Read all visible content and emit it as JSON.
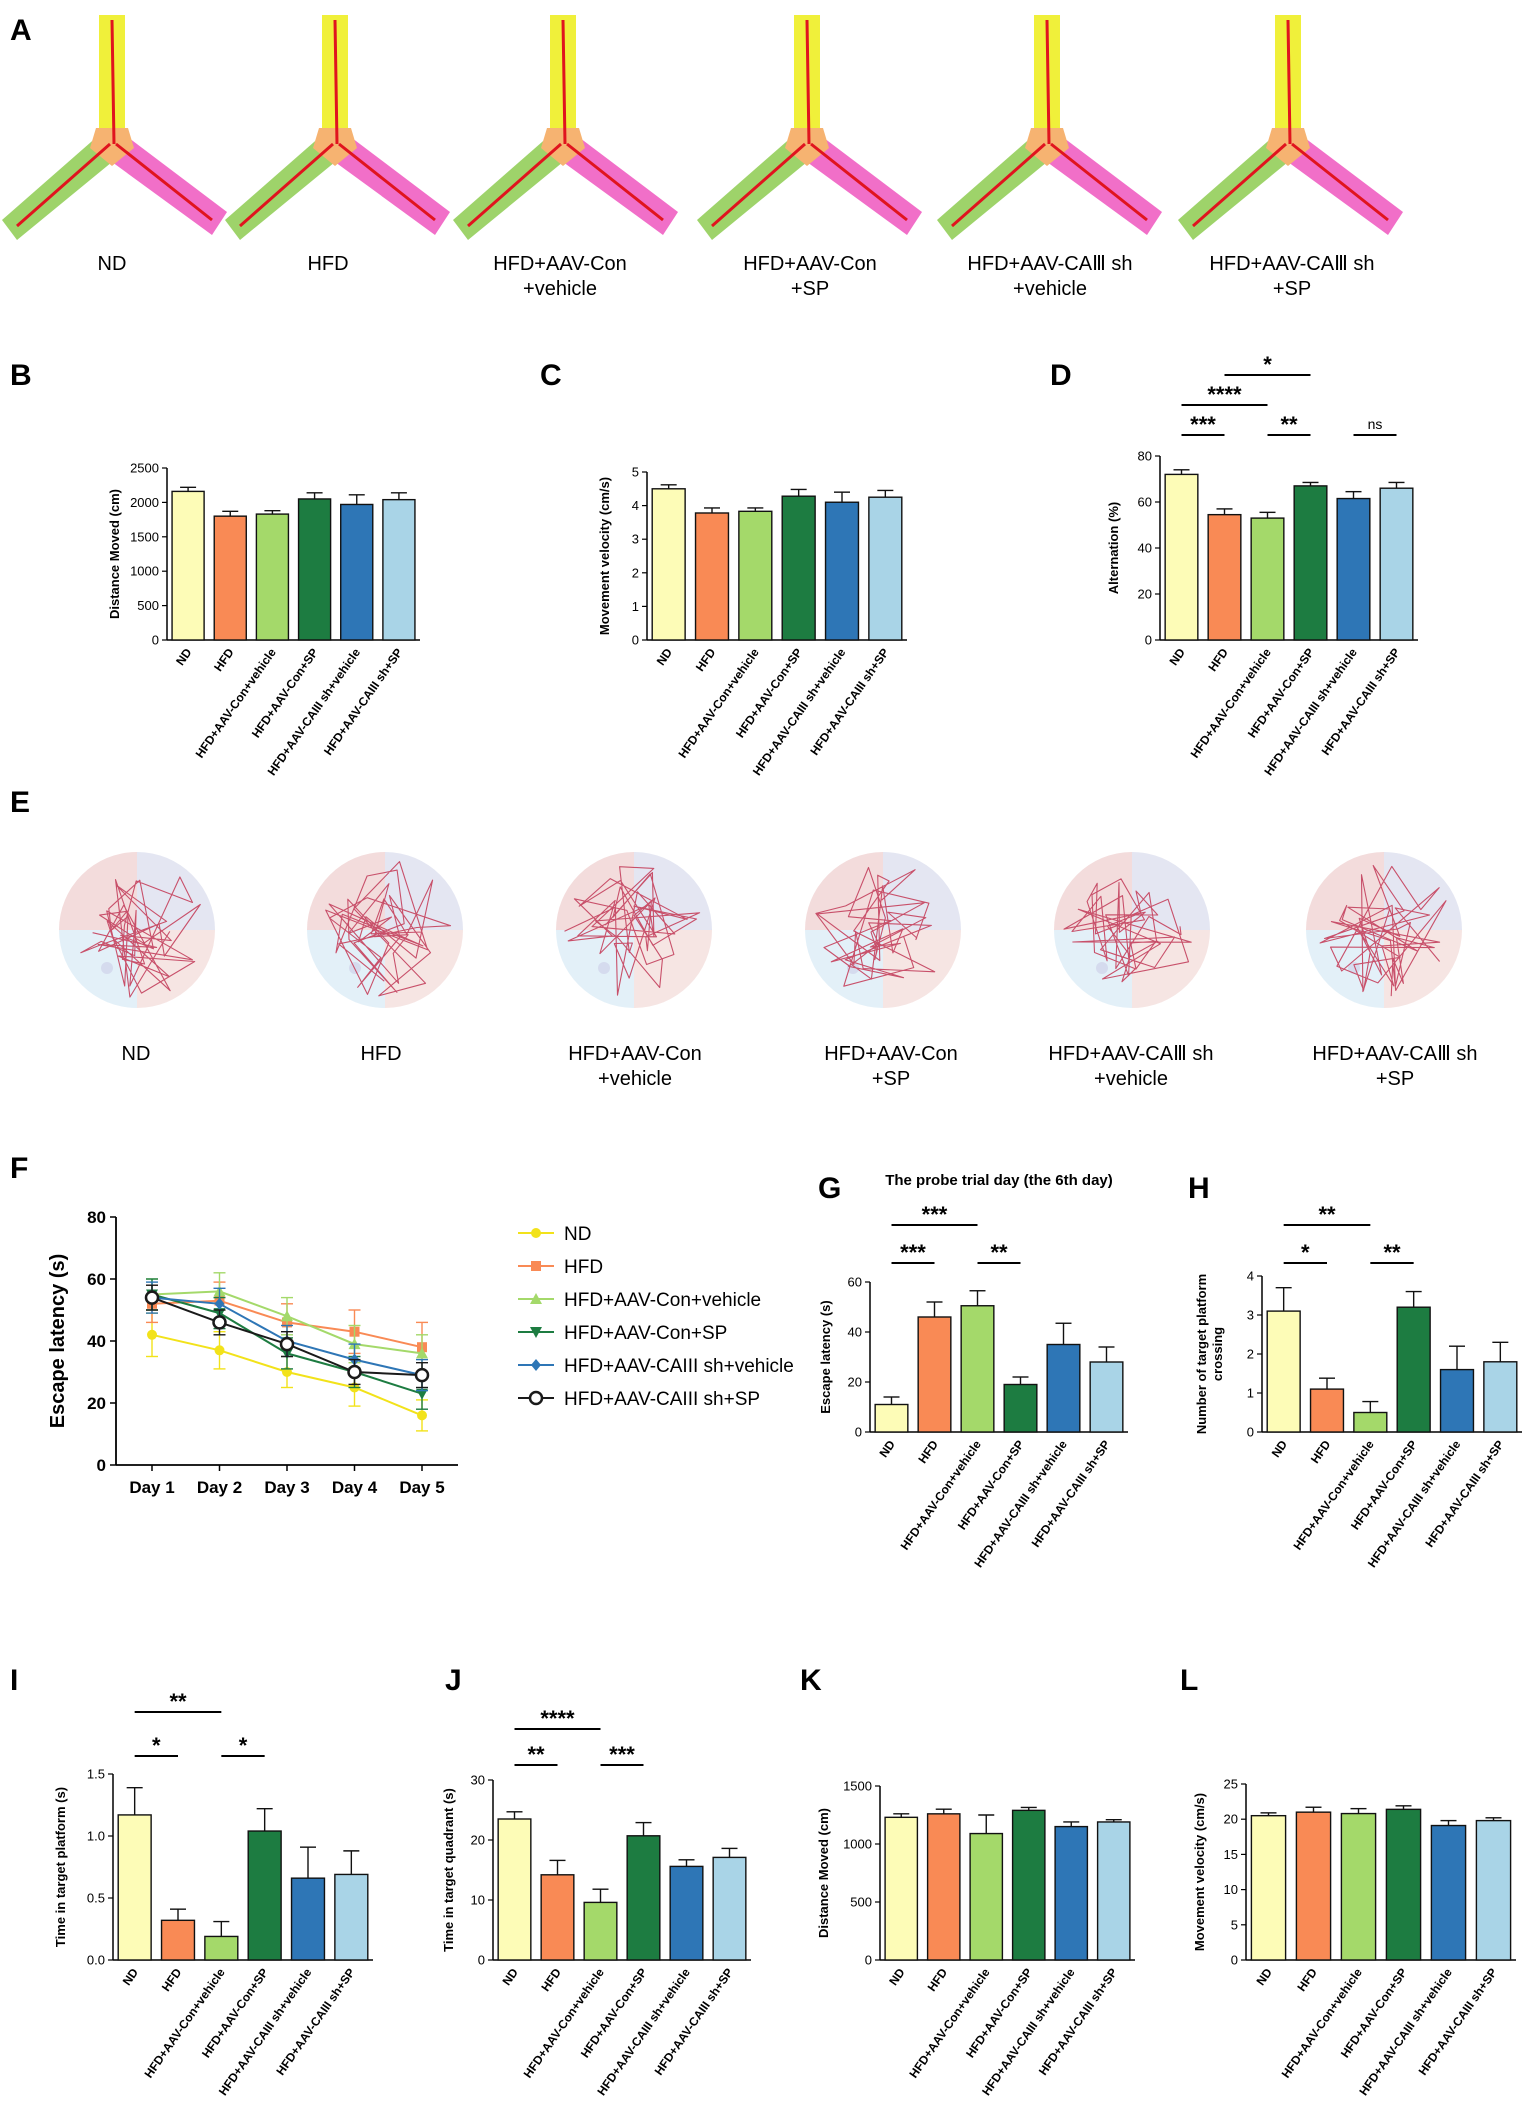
{
  "figure": {
    "panel_letters": [
      "A",
      "B",
      "C",
      "D",
      "E",
      "F",
      "G",
      "H",
      "I",
      "J",
      "K",
      "L"
    ],
    "group_captions": [
      [
        "ND"
      ],
      [
        "HFD"
      ],
      [
        "HFD+AAV-Con",
        "+vehicle"
      ],
      [
        "HFD+AAV-Con",
        "+SP"
      ],
      [
        "HFD+AAV-CAⅢ sh",
        "+vehicle"
      ],
      [
        "HFD+AAV-CAⅢ sh",
        "+SP"
      ]
    ],
    "bar_colors": [
      "#fdfcb7",
      "#f98a55",
      "#a4d96a",
      "#1d7c41",
      "#2e76b6",
      "#a9d4e7"
    ],
    "ymaze_colors": {
      "top": "#f0f03a",
      "left": "#9ed36a",
      "right": "#f16fc8",
      "center": "#f6b371",
      "track": "#e0141e"
    },
    "quadrant_colors": [
      "#f3dcdc",
      "#e4e6f2",
      "#e3f0f8",
      "#f6e5e3"
    ]
  },
  "chart_data": [
    {
      "id": "B",
      "type": "bar",
      "title": "",
      "ylabel": "Distance Moved (cm)",
      "xlabel": "",
      "ylim": [
        0,
        2500
      ],
      "yticks": [
        0,
        500,
        1000,
        1500,
        2000,
        2500
      ],
      "categories": [
        "ND",
        "HFD",
        "HFD+AAV-Con+vehicle",
        "HFD+AAV-Con+SP",
        "HFD+AAV-CAIII sh+vehicle",
        "HFD+AAV-CAIII sh+SP"
      ],
      "values": [
        2160,
        1800,
        1830,
        2050,
        1970,
        2040
      ],
      "errors": [
        60,
        70,
        50,
        90,
        140,
        100
      ],
      "significance": []
    },
    {
      "id": "C",
      "type": "bar",
      "title": "",
      "ylabel": "Movement velocity (cm/s)",
      "xlabel": "",
      "ylim": [
        0,
        5
      ],
      "yticks": [
        0,
        1,
        2,
        3,
        4,
        5
      ],
      "categories": [
        "ND",
        "HFD",
        "HFD+AAV-Con+vehicle",
        "HFD+AAV-Con+SP",
        "HFD+AAV-CAIII sh+vehicle",
        "HFD+AAV-CAIII sh+SP"
      ],
      "values": [
        4.5,
        3.78,
        3.83,
        4.28,
        4.1,
        4.25
      ],
      "errors": [
        0.12,
        0.15,
        0.1,
        0.2,
        0.3,
        0.2
      ],
      "significance": []
    },
    {
      "id": "D",
      "type": "bar",
      "title": "",
      "ylabel": "Alternation (%)",
      "xlabel": "",
      "ylim": [
        0,
        80
      ],
      "yticks": [
        0,
        20,
        40,
        60,
        80
      ],
      "categories": [
        "ND",
        "HFD",
        "HFD+AAV-Con+vehicle",
        "HFD+AAV-Con+SP",
        "HFD+AAV-CAIII sh+vehicle",
        "HFD+AAV-CAIII sh+SP"
      ],
      "values": [
        72,
        54.5,
        53,
        67,
        61.5,
        66
      ],
      "errors": [
        2,
        2.5,
        2.5,
        1.5,
        3,
        2.5
      ],
      "significance": [
        {
          "from": 0,
          "to": 1,
          "label": "***",
          "level": 0
        },
        {
          "from": 2,
          "to": 3,
          "label": "**",
          "level": 0
        },
        {
          "from": 4,
          "to": 5,
          "label": "ns",
          "level": 0
        },
        {
          "from": 0,
          "to": 2,
          "label": "****",
          "level": 1
        },
        {
          "from": 1,
          "to": 3,
          "label": "*",
          "level": 2
        }
      ]
    },
    {
      "id": "F",
      "type": "line",
      "title": "",
      "ylabel": "Escape latency (s)",
      "xlabel": "",
      "ylim": [
        0,
        80
      ],
      "yticks": [
        0,
        20,
        40,
        60,
        80
      ],
      "x": [
        "Day 1",
        "Day 2",
        "Day 3",
        "Day 4",
        "Day 5"
      ],
      "series": [
        {
          "name": "ND",
          "values": [
            42,
            37,
            30,
            25,
            16
          ],
          "errors": [
            7,
            6,
            5,
            6,
            5
          ],
          "color": "#f2e21a",
          "marker": "circle"
        },
        {
          "name": "HFD",
          "values": [
            52,
            53,
            46,
            43,
            38
          ],
          "errors": [
            6,
            6,
            6,
            7,
            8
          ],
          "color": "#f98a55",
          "marker": "square"
        },
        {
          "name": "HFD+AAV-Con+vehicle",
          "values": [
            55,
            56,
            48,
            39,
            36
          ],
          "errors": [
            5,
            6,
            6,
            6,
            6
          ],
          "color": "#a4d96a",
          "marker": "triangle-up"
        },
        {
          "name": "HFD+AAV-Con+SP",
          "values": [
            55,
            49,
            36,
            30,
            23
          ],
          "errors": [
            5,
            5,
            5,
            5,
            5
          ],
          "color": "#1d7c41",
          "marker": "triangle-down"
        },
        {
          "name": "HFD+AAV-CAIII sh+vehicle",
          "values": [
            54,
            52,
            40,
            34,
            29
          ],
          "errors": [
            5,
            5,
            5,
            5,
            5
          ],
          "color": "#2e76b6",
          "marker": "diamond"
        },
        {
          "name": "HFD+AAV-CAIII sh+SP",
          "values": [
            54,
            46,
            39,
            30,
            29
          ],
          "errors": [
            4,
            4,
            4,
            4,
            4
          ],
          "color": "#1a1a1a",
          "marker": "open-circle"
        }
      ]
    },
    {
      "id": "G",
      "type": "bar",
      "title": "The probe trial day (the 6th day)",
      "ylabel": "Escape latency (s)",
      "xlabel": "",
      "ylim": [
        0,
        60
      ],
      "yticks": [
        0,
        20,
        40,
        60
      ],
      "categories": [
        "ND",
        "HFD",
        "HFD+AAV-Con+vehicle",
        "HFD+AAV-Con+SP",
        "HFD+AAV-CAIII sh+vehicle",
        "HFD+AAV-CAIII sh+SP"
      ],
      "values": [
        11,
        46,
        50.5,
        19,
        35,
        28
      ],
      "errors": [
        3,
        6,
        6,
        3,
        8.5,
        6
      ],
      "significance": [
        {
          "from": 0,
          "to": 1,
          "label": "***",
          "level": 0
        },
        {
          "from": 2,
          "to": 3,
          "label": "**",
          "level": 0
        },
        {
          "from": 0,
          "to": 2,
          "label": "***",
          "level": 1
        }
      ]
    },
    {
      "id": "H",
      "type": "bar",
      "title": "",
      "ylabel": "Number of target platform crossing",
      "xlabel": "",
      "ylim": [
        0,
        4
      ],
      "yticks": [
        0,
        1,
        2,
        3,
        4
      ],
      "categories": [
        "ND",
        "HFD",
        "HFD+AAV-Con+vehicle",
        "HFD+AAV-Con+SP",
        "HFD+AAV-CAIII sh+vehicle",
        "HFD+AAV-CAIII sh+SP"
      ],
      "values": [
        3.1,
        1.1,
        0.5,
        3.2,
        1.6,
        1.8
      ],
      "errors": [
        0.6,
        0.28,
        0.28,
        0.4,
        0.6,
        0.5
      ],
      "significance": [
        {
          "from": 0,
          "to": 1,
          "label": "*",
          "level": 0
        },
        {
          "from": 2,
          "to": 3,
          "label": "**",
          "level": 0
        },
        {
          "from": 0,
          "to": 2,
          "label": "**",
          "level": 1
        }
      ]
    },
    {
      "id": "I",
      "type": "bar",
      "title": "",
      "ylabel": "Time in target platform (s)",
      "xlabel": "",
      "ylim": [
        0,
        1.5
      ],
      "yticks": [
        0.0,
        0.5,
        1.0,
        1.5
      ],
      "categories": [
        "ND",
        "HFD",
        "HFD+AAV-Con+vehicle",
        "HFD+AAV-Con+SP",
        "HFD+AAV-CAIII sh+vehicle",
        "HFD+AAV-CAIII sh+SP"
      ],
      "values": [
        1.17,
        0.32,
        0.19,
        1.04,
        0.66,
        0.69
      ],
      "errors": [
        0.22,
        0.09,
        0.12,
        0.18,
        0.25,
        0.19
      ],
      "significance": [
        {
          "from": 0,
          "to": 1,
          "label": "*",
          "level": 0
        },
        {
          "from": 2,
          "to": 3,
          "label": "*",
          "level": 0
        },
        {
          "from": 0,
          "to": 2,
          "label": "**",
          "level": 1
        }
      ]
    },
    {
      "id": "J",
      "type": "bar",
      "title": "",
      "ylabel": "Time in target quadrant (s)",
      "xlabel": "",
      "ylim": [
        0,
        30
      ],
      "yticks": [
        0,
        10,
        20,
        30
      ],
      "categories": [
        "ND",
        "HFD",
        "HFD+AAV-Con+vehicle",
        "HFD+AAV-Con+SP",
        "HFD+AAV-CAIII sh+vehicle",
        "HFD+AAV-CAIII sh+SP"
      ],
      "values": [
        23.5,
        14.2,
        9.6,
        20.7,
        15.6,
        17.1
      ],
      "errors": [
        1.2,
        2.4,
        2.2,
        2.2,
        1.1,
        1.5
      ],
      "significance": [
        {
          "from": 0,
          "to": 1,
          "label": "**",
          "level": 0
        },
        {
          "from": 2,
          "to": 3,
          "label": "***",
          "level": 0
        },
        {
          "from": 0,
          "to": 2,
          "label": "****",
          "level": 1
        }
      ]
    },
    {
      "id": "K",
      "type": "bar",
      "title": "",
      "ylabel": "Distance Moved (cm)",
      "xlabel": "",
      "ylim": [
        0,
        1500
      ],
      "yticks": [
        0,
        500,
        1000,
        1500
      ],
      "categories": [
        "ND",
        "HFD",
        "HFD+AAV-Con+vehicle",
        "HFD+AAV-Con+SP",
        "HFD+AAV-CAIII sh+vehicle",
        "HFD+AAV-CAIII sh+SP"
      ],
      "values": [
        1230,
        1260,
        1090,
        1290,
        1150,
        1190
      ],
      "errors": [
        30,
        40,
        160,
        25,
        40,
        20
      ],
      "significance": []
    },
    {
      "id": "L",
      "type": "bar",
      "title": "",
      "ylabel": "Movement velocity (cm/s)",
      "xlabel": "",
      "ylim": [
        0,
        25
      ],
      "yticks": [
        0,
        5,
        10,
        15,
        20,
        25
      ],
      "categories": [
        "ND",
        "HFD",
        "HFD+AAV-Con+vehicle",
        "HFD+AAV-Con+SP",
        "HFD+AAV-CAIII sh+vehicle",
        "HFD+AAV-CAIII sh+SP"
      ],
      "values": [
        20.5,
        21,
        20.8,
        21.4,
        19.1,
        19.8
      ],
      "errors": [
        0.4,
        0.7,
        0.7,
        0.5,
        0.7,
        0.4
      ],
      "significance": []
    }
  ]
}
